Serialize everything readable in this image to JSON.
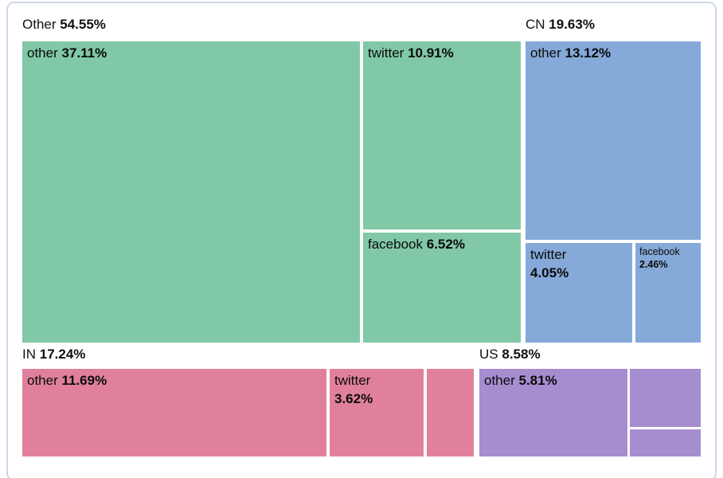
{
  "chart_data": {
    "type": "treemap",
    "title": "",
    "legend": "none",
    "groups": [
      {
        "label": "Other",
        "value": "54.55%",
        "value_pct": 54.55,
        "color": "#80c8a6",
        "cells": [
          {
            "label": "other",
            "value": "37.11%",
            "value_pct": 37.11
          },
          {
            "label": "twitter",
            "value": "10.91%",
            "value_pct": 10.91
          },
          {
            "label": "facebook",
            "value": "6.52%",
            "value_pct": 6.52
          }
        ]
      },
      {
        "label": "CN",
        "value": "19.63%",
        "value_pct": 19.63,
        "color": "#85a9d8",
        "cells": [
          {
            "label": "other",
            "value": "13.12%",
            "value_pct": 13.12
          },
          {
            "label": "twitter",
            "value": "4.05%",
            "value_pct": 4.05
          },
          {
            "label": "facebook",
            "value": "2.46%",
            "value_pct": 2.46
          }
        ]
      },
      {
        "label": "IN",
        "value": "17.24%",
        "value_pct": 17.24,
        "color": "#e0809c",
        "cells": [
          {
            "label": "other",
            "value": "11.69%",
            "value_pct": 11.69
          },
          {
            "label": "twitter",
            "value": "3.62%",
            "value_pct": 3.62
          },
          {
            "label": "",
            "value": "",
            "value_pct": null
          }
        ]
      },
      {
        "label": "US",
        "value": "8.58%",
        "value_pct": 8.58,
        "color": "#a58dd0",
        "cells": [
          {
            "label": "other",
            "value": "5.81%",
            "value_pct": 5.81
          },
          {
            "label": "",
            "value": "",
            "value_pct": null
          },
          {
            "label": "",
            "value": "",
            "value_pct": null
          }
        ]
      }
    ]
  }
}
